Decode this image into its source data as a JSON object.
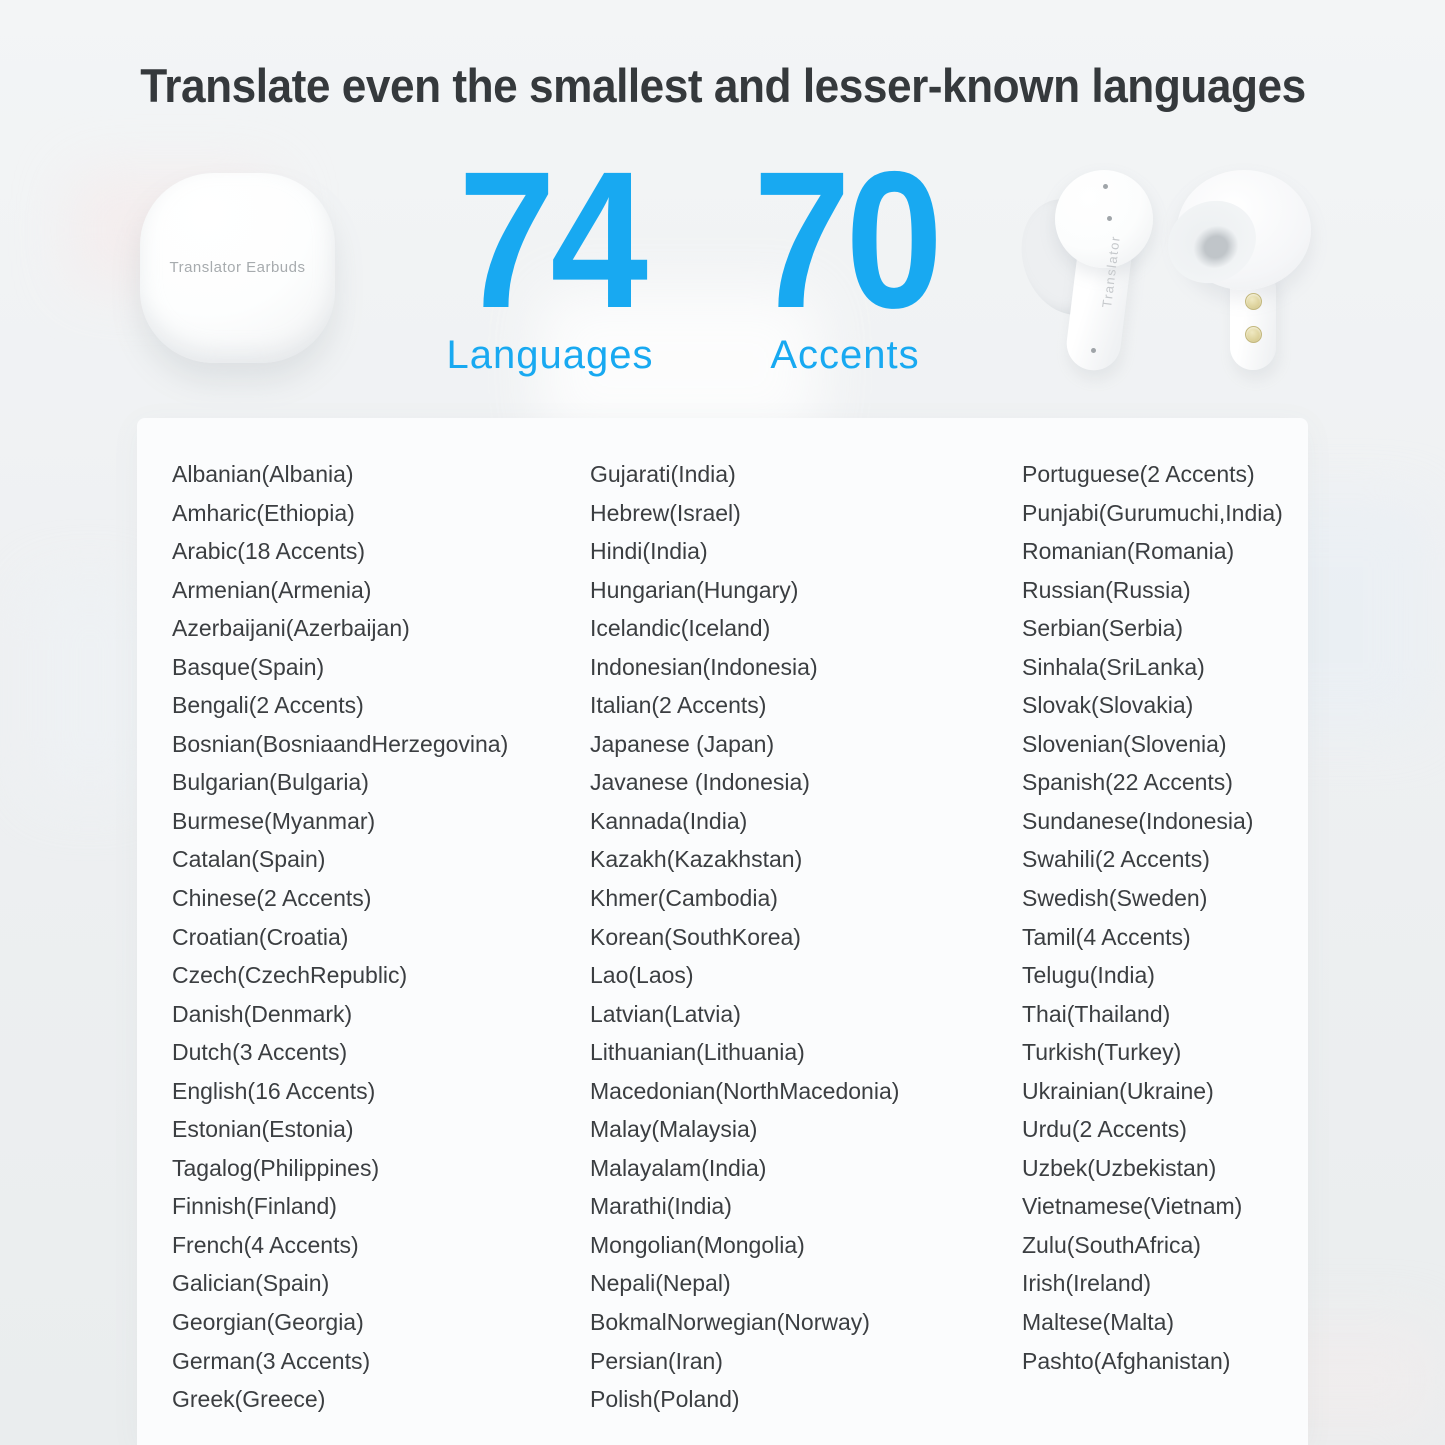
{
  "title": "Translate even the smallest and lesser-known languages",
  "hero": {
    "case_label": "Translator Earbuds",
    "earbud_stem_label": "Translator",
    "stats": [
      {
        "value": "74",
        "label": "Languages"
      },
      {
        "value": "70",
        "label": "Accents"
      }
    ]
  },
  "colors": {
    "accent": "#18a9f1",
    "title_text": "#35393c",
    "list_text": "#3b3e41",
    "page_background": "#eef0f2",
    "card_background": "#fbfcfd"
  },
  "languages": {
    "column1": [
      "Albanian(Albania)",
      "Amharic(Ethiopia)",
      "Arabic(18 Accents)",
      "Armenian(Armenia)",
      "Azerbaijani(Azerbaijan)",
      "Basque(Spain)",
      "Bengali(2 Accents)",
      "Bosnian(BosniaandHerzegovina)",
      "Bulgarian(Bulgaria)",
      "Burmese(Myanmar)",
      "Catalan(Spain)",
      "Chinese(2 Accents)",
      "Croatian(Croatia)",
      "Czech(CzechRepublic)",
      "Danish(Denmark)",
      "Dutch(3 Accents)",
      "English(16 Accents)",
      "Estonian(Estonia)",
      "Tagalog(Philippines)",
      "Finnish(Finland)",
      "French(4 Accents)",
      "Galician(Spain)",
      "Georgian(Georgia)",
      "German(3 Accents)",
      "Greek(Greece)"
    ],
    "column2": [
      "Gujarati(India)",
      "Hebrew(Israel)",
      "Hindi(India)",
      "Hungarian(Hungary)",
      "Icelandic(Iceland)",
      "Indonesian(Indonesia)",
      "Italian(2 Accents)",
      "Japanese (Japan)",
      "Javanese (Indonesia)",
      "Kannada(India)",
      "Kazakh(Kazakhstan)",
      "Khmer(Cambodia)",
      "Korean(SouthKorea)",
      "Lao(Laos)",
      "Latvian(Latvia)",
      "Lithuanian(Lithuania)",
      "Macedonian(NorthMacedonia)",
      "Malay(Malaysia)",
      "Malayalam(India)",
      "Marathi(India)",
      "Mongolian(Mongolia)",
      "Nepali(Nepal)",
      "BokmalNorwegian(Norway)",
      "Persian(Iran)",
      "Polish(Poland)"
    ],
    "column3": [
      "Portuguese(2 Accents)",
      "Punjabi(Gurumuchi,India)",
      "Romanian(Romania)",
      "Russian(Russia)",
      "Serbian(Serbia)",
      "Sinhala(SriLanka)",
      "Slovak(Slovakia)",
      "Slovenian(Slovenia)",
      "Spanish(22 Accents)",
      "Sundanese(Indonesia)",
      "Swahili(2 Accents)",
      "Swedish(Sweden)",
      "Tamil(4 Accents)",
      "Telugu(India)",
      "Thai(Thailand)",
      "Turkish(Turkey)",
      "Ukrainian(Ukraine)",
      "Urdu(2 Accents)",
      "Uzbek(Uzbekistan)",
      "Vietnamese(Vietnam)",
      "Zulu(SouthAfrica)",
      "Irish(Ireland)",
      "Maltese(Malta)",
      "Pashto(Afghanistan)"
    ]
  }
}
